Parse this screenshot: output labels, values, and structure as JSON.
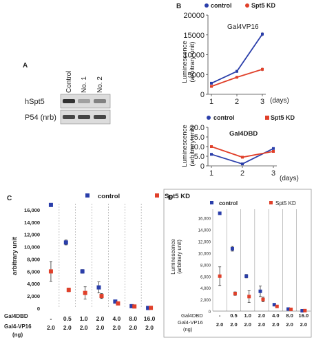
{
  "colors": {
    "control": "#2a3eaa",
    "kd": "#e0402a",
    "axis": "#444444",
    "grid": "#999999"
  },
  "panel_A": {
    "letter": "A",
    "lanes": [
      "Control",
      "No. 1",
      "No. 2"
    ],
    "rows": [
      {
        "label": "hSpt5",
        "intensities": [
          0.85,
          0.3,
          0.45
        ]
      },
      {
        "label": "P54 (nrb)",
        "intensities": [
          0.75,
          0.75,
          0.75
        ]
      }
    ]
  },
  "chart_data": [
    {
      "id": "B-top",
      "type": "line",
      "panel_letter": "B",
      "legend": {
        "control": "control",
        "kd": "Spt5 KD"
      },
      "inner_label": "Gal4VP16",
      "ylabel": "Luminescence\n(arbitrary unit)",
      "xlabel": "(days)",
      "x": [
        1,
        2,
        3
      ],
      "ylim": [
        0,
        20000
      ],
      "yticks": [
        0,
        5000,
        10000,
        15000,
        20000
      ],
      "series": [
        {
          "name": "control",
          "values": [
            2800,
            5800,
            15200
          ],
          "err": [
            300,
            400,
            500
          ]
        },
        {
          "name": "Spt5 KD",
          "values": [
            2000,
            4300,
            6300
          ],
          "err": [
            200,
            300,
            450
          ]
        }
      ]
    },
    {
      "id": "B-bottom",
      "type": "line",
      "legend": {
        "control": "control",
        "kd": "Spt5 KD"
      },
      "inner_label": "Gal4DBD",
      "ylabel": "Luminescence\n(arbitrary unit)",
      "xlabel": "(days)",
      "x": [
        1,
        2,
        3
      ],
      "ylim": [
        0,
        20
      ],
      "yticks": [
        "0",
        "5.0",
        "10.0",
        "15.0",
        "20.0"
      ],
      "series": [
        {
          "name": "control",
          "values": [
            6.0,
            1.0,
            9.0
          ],
          "err": [
            0.6,
            0.3,
            0.5
          ]
        },
        {
          "name": "Spt5 KD",
          "values": [
            10.0,
            4.5,
            7.5
          ],
          "err": [
            0.6,
            0.4,
            0.5
          ]
        }
      ]
    },
    {
      "id": "C",
      "type": "scatter",
      "panel_letter": "C",
      "legend": {
        "control": "control",
        "kd": "Spt5 KD"
      },
      "ylabel": "arbitrary unit",
      "ylim": [
        0,
        17000
      ],
      "yticks": [
        "0",
        "2,000",
        "4,000",
        "6,000",
        "8,000",
        "10,000",
        "12,000",
        "14,000",
        "16,000"
      ],
      "row_labels": [
        "Gal4DBD",
        "Gal4-VP16",
        "(ng)"
      ],
      "gal4dbd": [
        "-",
        "0.5",
        "1.0",
        "2.0",
        "4.0",
        "8.0",
        "16.0"
      ],
      "gal4vp16": [
        "2.0",
        "2.0",
        "2.0",
        "2.0",
        "2.0",
        "2.0",
        "2.0"
      ],
      "series": [
        {
          "name": "control",
          "values": [
            16800,
            10700,
            6000,
            3400,
            1100,
            350,
            60
          ],
          "err": [
            0,
            400,
            300,
            900,
            200,
            100,
            30
          ]
        },
        {
          "name": "Spt5 KD",
          "values": [
            6000,
            3000,
            2500,
            2000,
            800,
            300,
            80
          ],
          "err": [
            1600,
            300,
            1000,
            400,
            100,
            80,
            30
          ]
        }
      ]
    },
    {
      "id": "D",
      "type": "scatter",
      "panel_letter": "D",
      "legend": {
        "control": "control",
        "kd": "Spt5 KD"
      },
      "ylabel": "Luminescence\n(arbitrary unit)",
      "ylim": [
        0,
        17500
      ],
      "yticks": [
        "0",
        "2,000",
        "4,000",
        "6,000",
        "8,000",
        "10,000",
        "12,000",
        "14,000",
        "16,000"
      ],
      "row_labels": [
        "Gal4DBD",
        "Gal4-VP16",
        "(ng)"
      ],
      "gal4dbd": [
        "-",
        "0.5",
        "1.0",
        "2.0",
        "4.0",
        "8.0",
        "16.0"
      ],
      "gal4vp16": [
        "2.0",
        "2.0",
        "2.0",
        "2.0",
        "2.0",
        "2.0",
        "2.0"
      ],
      "series": [
        {
          "name": "control",
          "values": [
            16800,
            10700,
            6000,
            3400,
            1100,
            350,
            60
          ],
          "err": [
            0,
            400,
            300,
            900,
            200,
            100,
            30
          ]
        },
        {
          "name": "Spt5 KD",
          "values": [
            6000,
            3000,
            2500,
            2000,
            800,
            300,
            80
          ],
          "err": [
            1600,
            300,
            1000,
            400,
            100,
            80,
            30
          ]
        }
      ]
    }
  ]
}
